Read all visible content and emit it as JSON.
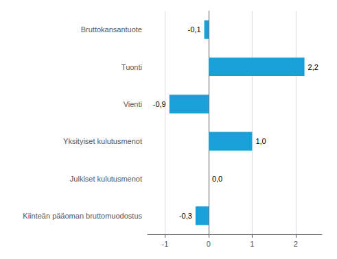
{
  "chart_data": {
    "type": "bar",
    "orientation": "horizontal",
    "categories": [
      "Kiinteän pääoman bruttomuodostus",
      "Julkiset kulutusmenot",
      "Yksityiset kulutusmenot",
      "Vienti",
      "Tuonti",
      "Bruttokansantuote"
    ],
    "values": [
      -0.3,
      0.0,
      1.0,
      -0.9,
      2.2,
      -0.1
    ],
    "value_labels": [
      "-0,3",
      "0,0",
      "1,0",
      "-0,9",
      "2,2",
      "-0,1"
    ],
    "color": "#1aa0d8",
    "xlim": [
      -1.4,
      2.6
    ],
    "xticks": [
      -1,
      0,
      1,
      2
    ],
    "grid": true,
    "data_labels": true
  }
}
